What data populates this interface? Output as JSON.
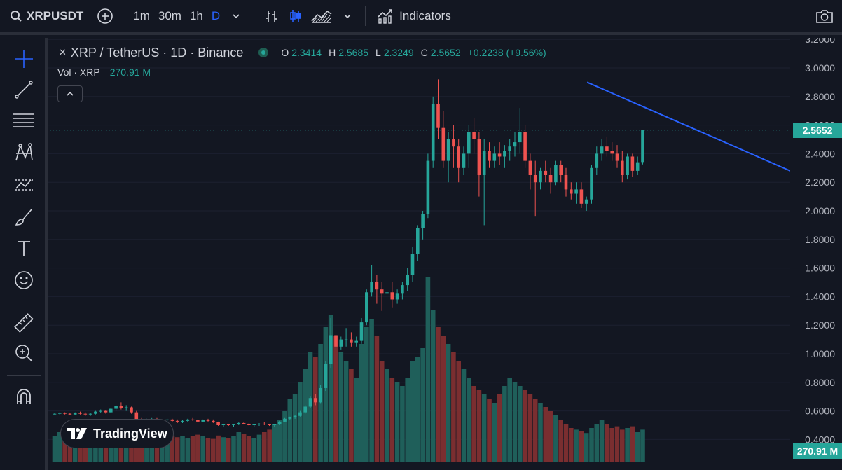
{
  "toolbar": {
    "symbol": "XRPUSDT",
    "intervals": [
      "1m",
      "30m",
      "1h",
      "D"
    ],
    "active_interval": "D",
    "indicators_label": "Indicators"
  },
  "legend": {
    "title": "XRP / TetherUS · 1D · Binance",
    "open_label": "O",
    "open": "2.3414",
    "high_label": "H",
    "high": "2.5685",
    "low_label": "L",
    "low": "2.3249",
    "close_label": "C",
    "close": "2.5652",
    "change": "+0.2238 (+9.56%)"
  },
  "volume_legend": {
    "label": "Vol · XRP",
    "value": "270.91 M"
  },
  "price_axis": {
    "ticks": [
      "3.2000",
      "3.0000",
      "2.8000",
      "2.6000",
      "2.4000",
      "2.2000",
      "2.0000",
      "1.8000",
      "1.6000",
      "1.4000",
      "1.2000",
      "1.0000",
      "0.8000",
      "0.6000",
      "0.4000"
    ],
    "current_price": "2.5652",
    "current_volume": "270.91 M"
  },
  "logo_text": "TradingView",
  "colors": {
    "up": "#26a69a",
    "down": "#ef5350",
    "trendline": "#2962ff",
    "background": "#131722"
  },
  "chart_data": {
    "type": "candlestick",
    "ylim": [
      0.4,
      3.2
    ],
    "current": 2.5652,
    "trendline": [
      [
        0.7265,
        2.9
      ],
      [
        1.0,
        2.28
      ]
    ],
    "ohlc": [
      [
        0.58,
        0.585,
        0.575,
        0.58
      ],
      [
        0.58,
        0.59,
        0.57,
        0.585
      ],
      [
        0.585,
        0.59,
        0.575,
        0.58
      ],
      [
        0.58,
        0.585,
        0.57,
        0.575
      ],
      [
        0.575,
        0.59,
        0.57,
        0.585
      ],
      [
        0.585,
        0.595,
        0.575,
        0.58
      ],
      [
        0.58,
        0.59,
        0.565,
        0.575
      ],
      [
        0.575,
        0.585,
        0.565,
        0.58
      ],
      [
        0.58,
        0.6,
        0.575,
        0.595
      ],
      [
        0.595,
        0.61,
        0.585,
        0.6
      ],
      [
        0.6,
        0.605,
        0.58,
        0.59
      ],
      [
        0.59,
        0.62,
        0.585,
        0.615
      ],
      [
        0.615,
        0.64,
        0.6,
        0.635
      ],
      [
        0.635,
        0.66,
        0.61,
        0.62
      ],
      [
        0.62,
        0.64,
        0.6,
        0.625
      ],
      [
        0.625,
        0.63,
        0.58,
        0.59
      ],
      [
        0.59,
        0.6,
        0.53,
        0.54
      ],
      [
        0.54,
        0.55,
        0.52,
        0.53
      ],
      [
        0.53,
        0.545,
        0.52,
        0.535
      ],
      [
        0.535,
        0.55,
        0.525,
        0.54
      ],
      [
        0.54,
        0.55,
        0.525,
        0.53
      ],
      [
        0.53,
        0.54,
        0.52,
        0.535
      ],
      [
        0.535,
        0.545,
        0.525,
        0.54
      ],
      [
        0.54,
        0.545,
        0.525,
        0.53
      ],
      [
        0.53,
        0.54,
        0.515,
        0.525
      ],
      [
        0.525,
        0.535,
        0.515,
        0.53
      ],
      [
        0.53,
        0.545,
        0.525,
        0.54
      ],
      [
        0.54,
        0.55,
        0.53,
        0.535
      ],
      [
        0.535,
        0.54,
        0.52,
        0.525
      ],
      [
        0.525,
        0.54,
        0.52,
        0.535
      ],
      [
        0.535,
        0.545,
        0.525,
        0.53
      ],
      [
        0.53,
        0.54,
        0.515,
        0.52
      ],
      [
        0.52,
        0.525,
        0.495,
        0.5
      ],
      [
        0.5,
        0.51,
        0.49,
        0.505
      ],
      [
        0.505,
        0.51,
        0.495,
        0.5
      ],
      [
        0.5,
        0.51,
        0.49,
        0.505
      ],
      [
        0.505,
        0.52,
        0.5,
        0.515
      ],
      [
        0.515,
        0.52,
        0.505,
        0.51
      ],
      [
        0.51,
        0.515,
        0.495,
        0.5
      ],
      [
        0.5,
        0.51,
        0.49,
        0.505
      ],
      [
        0.505,
        0.515,
        0.495,
        0.51
      ],
      [
        0.51,
        0.52,
        0.5,
        0.505
      ],
      [
        0.505,
        0.51,
        0.495,
        0.5
      ],
      [
        0.5,
        0.51,
        0.49,
        0.505
      ],
      [
        0.505,
        0.53,
        0.5,
        0.525
      ],
      [
        0.525,
        0.55,
        0.52,
        0.545
      ],
      [
        0.545,
        0.56,
        0.535,
        0.555
      ],
      [
        0.555,
        0.57,
        0.545,
        0.565
      ],
      [
        0.565,
        0.6,
        0.56,
        0.59
      ],
      [
        0.59,
        0.64,
        0.58,
        0.63
      ],
      [
        0.63,
        0.7,
        0.62,
        0.69
      ],
      [
        0.69,
        0.72,
        0.64,
        0.66
      ],
      [
        0.66,
        0.78,
        0.65,
        0.76
      ],
      [
        0.76,
        0.95,
        0.74,
        0.93
      ],
      [
        0.93,
        1.25,
        0.9,
        1.13
      ],
      [
        1.13,
        1.18,
        1.0,
        1.05
      ],
      [
        1.05,
        1.12,
        1.03,
        1.1
      ],
      [
        1.1,
        1.18,
        1.05,
        1.1
      ],
      [
        1.1,
        1.15,
        1.05,
        1.08
      ],
      [
        1.08,
        1.12,
        1.05,
        1.09
      ],
      [
        1.09,
        1.25,
        1.07,
        1.22
      ],
      [
        1.22,
        1.45,
        1.2,
        1.43
      ],
      [
        1.43,
        1.62,
        1.4,
        1.5
      ],
      [
        1.5,
        1.55,
        1.35,
        1.45
      ],
      [
        1.45,
        1.5,
        1.3,
        1.42
      ],
      [
        1.42,
        1.48,
        1.3,
        1.43
      ],
      [
        1.43,
        1.5,
        1.32,
        1.38
      ],
      [
        1.38,
        1.45,
        1.35,
        1.42
      ],
      [
        1.42,
        1.5,
        1.38,
        1.48
      ],
      [
        1.48,
        1.6,
        1.44,
        1.55
      ],
      [
        1.55,
        1.75,
        1.5,
        1.7
      ],
      [
        1.7,
        1.9,
        1.65,
        1.88
      ],
      [
        1.88,
        2.0,
        1.8,
        1.98
      ],
      [
        1.98,
        2.4,
        1.95,
        2.35
      ],
      [
        2.35,
        2.8,
        2.3,
        2.75
      ],
      [
        2.75,
        2.92,
        2.5,
        2.58
      ],
      [
        2.58,
        2.7,
        2.3,
        2.35
      ],
      [
        2.35,
        2.55,
        2.2,
        2.5
      ],
      [
        2.5,
        2.6,
        2.3,
        2.45
      ],
      [
        2.45,
        2.5,
        2.2,
        2.3
      ],
      [
        2.3,
        2.45,
        2.25,
        2.4
      ],
      [
        2.4,
        2.6,
        2.3,
        2.55
      ],
      [
        2.55,
        2.65,
        2.4,
        2.5
      ],
      [
        2.5,
        2.55,
        2.1,
        2.25
      ],
      [
        2.25,
        2.5,
        1.9,
        2.42
      ],
      [
        2.42,
        2.48,
        2.3,
        2.35
      ],
      [
        2.35,
        2.45,
        2.3,
        2.4
      ],
      [
        2.4,
        2.48,
        2.32,
        2.38
      ],
      [
        2.38,
        2.46,
        2.3,
        2.42
      ],
      [
        2.42,
        2.5,
        2.35,
        2.45
      ],
      [
        2.45,
        2.55,
        2.38,
        2.48
      ],
      [
        2.48,
        2.72,
        2.4,
        2.55
      ],
      [
        2.55,
        2.6,
        2.3,
        2.35
      ],
      [
        2.35,
        2.4,
        2.15,
        2.25
      ],
      [
        2.25,
        2.35,
        1.96,
        2.2
      ],
      [
        2.2,
        2.3,
        2.15,
        2.28
      ],
      [
        2.28,
        2.35,
        2.2,
        2.25
      ],
      [
        2.25,
        2.3,
        2.12,
        2.2
      ],
      [
        2.2,
        2.35,
        2.18,
        2.32
      ],
      [
        2.32,
        2.35,
        2.2,
        2.25
      ],
      [
        2.25,
        2.3,
        2.1,
        2.15
      ],
      [
        2.15,
        2.2,
        2.08,
        2.12
      ],
      [
        2.12,
        2.2,
        2.05,
        2.15
      ],
      [
        2.15,
        2.2,
        2.02,
        2.05
      ],
      [
        2.05,
        2.1,
        2.0,
        2.08
      ],
      [
        2.08,
        2.32,
        2.05,
        2.3
      ],
      [
        2.3,
        2.45,
        2.25,
        2.4
      ],
      [
        2.4,
        2.5,
        2.35,
        2.45
      ],
      [
        2.45,
        2.52,
        2.38,
        2.42
      ],
      [
        2.42,
        2.48,
        2.35,
        2.4
      ],
      [
        2.4,
        2.46,
        2.3,
        2.35
      ],
      [
        2.35,
        2.42,
        2.2,
        2.25
      ],
      [
        2.25,
        2.4,
        2.22,
        2.38
      ],
      [
        2.38,
        2.4,
        2.24,
        2.28
      ],
      [
        2.28,
        2.38,
        2.25,
        2.34
      ],
      [
        2.3414,
        2.5685,
        2.3249,
        2.5652
      ]
    ],
    "volume": [
      30,
      35,
      33,
      32,
      34,
      31,
      36,
      34,
      38,
      40,
      36,
      42,
      45,
      40,
      37,
      38,
      44,
      38,
      36,
      34,
      33,
      32,
      30,
      31,
      29,
      30,
      28,
      30,
      32,
      30,
      28,
      27,
      31,
      29,
      28,
      30,
      35,
      33,
      30,
      28,
      32,
      35,
      38,
      45,
      50,
      60,
      75,
      80,
      95,
      110,
      130,
      125,
      140,
      160,
      175,
      150,
      130,
      120,
      110,
      100,
      140,
      160,
      170,
      150,
      120,
      110,
      100,
      95,
      90,
      100,
      120,
      125,
      135,
      220,
      180,
      160,
      150,
      140,
      130,
      120,
      110,
      100,
      90,
      85,
      80,
      75,
      70,
      80,
      90,
      100,
      95,
      90,
      85,
      80,
      75,
      70,
      65,
      60,
      55,
      50,
      45,
      40,
      38,
      36,
      34,
      40,
      45,
      50,
      45,
      40,
      42,
      38,
      40,
      42,
      35,
      38
    ]
  }
}
